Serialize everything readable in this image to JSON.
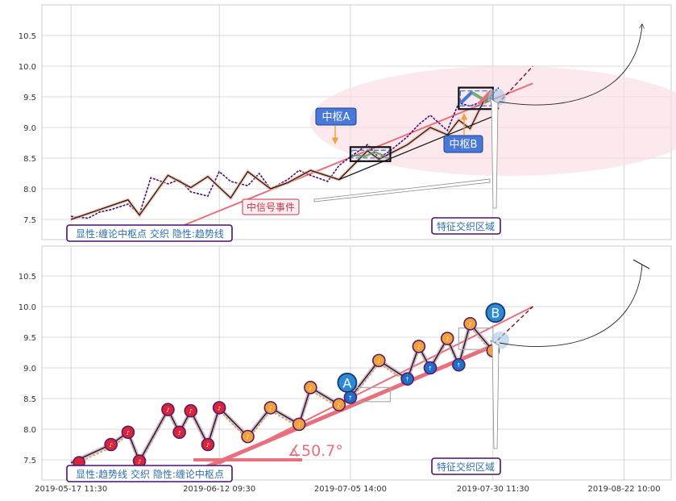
{
  "chart_data": [
    {
      "type": "line",
      "panel": "top",
      "title": "",
      "xlabel": "",
      "ylabel": "",
      "ylim": [
        7.3,
        10.95
      ],
      "yticks": [
        7.5,
        8.0,
        8.5,
        9.0,
        9.5,
        10.0,
        10.5
      ],
      "ytick_labels": [
        "7.5",
        "8.0",
        "8.5",
        "9.0",
        "9.5",
        "10.0",
        "10.5"
      ],
      "grid": true,
      "price_series": {
        "x": [
          "2019-05-17",
          "2019-05-20",
          "2019-05-22",
          "2019-05-24",
          "2019-05-27",
          "2019-05-29",
          "2019-05-31",
          "2019-06-03",
          "2019-06-05",
          "2019-06-07",
          "2019-06-10",
          "2019-06-12",
          "2019-06-14",
          "2019-06-17",
          "2019-06-19",
          "2019-06-21",
          "2019-06-24",
          "2019-06-26",
          "2019-06-28",
          "2019-07-01",
          "2019-07-03",
          "2019-07-05",
          "2019-07-08",
          "2019-07-10",
          "2019-07-12",
          "2019-07-15",
          "2019-07-17",
          "2019-07-19",
          "2019-07-22",
          "2019-07-24",
          "2019-07-26",
          "2019-07-29",
          "2019-07-31"
        ],
        "y": [
          7.55,
          7.52,
          7.62,
          7.66,
          7.75,
          7.58,
          8.18,
          8.08,
          8.15,
          7.95,
          7.88,
          8.28,
          8.12,
          8.05,
          8.25,
          8.0,
          8.15,
          8.3,
          8.22,
          8.12,
          8.38,
          8.52,
          8.72,
          8.5,
          8.62,
          8.85,
          9.05,
          9.2,
          8.95,
          9.4,
          9.35,
          9.45,
          9.65
        ]
      },
      "stroke_series": {
        "x": [
          "2019-05-17",
          "2019-05-27",
          "2019-05-29",
          "2019-06-03",
          "2019-06-07",
          "2019-06-10",
          "2019-06-14",
          "2019-06-17",
          "2019-06-21",
          "2019-06-24",
          "2019-06-28",
          "2019-07-03",
          "2019-07-08",
          "2019-07-10",
          "2019-07-15",
          "2019-07-19",
          "2019-07-22",
          "2019-07-24",
          "2019-07-26",
          "2019-07-29",
          "2019-07-31"
        ],
        "y": [
          7.5,
          7.82,
          7.57,
          8.22,
          8.02,
          8.2,
          7.85,
          8.28,
          8.0,
          8.1,
          8.3,
          8.15,
          8.62,
          8.48,
          8.72,
          9.0,
          8.88,
          9.12,
          8.98,
          9.55,
          9.3
        ]
      },
      "trend_line": {
        "x": [
          "2019-06-03",
          "2019-08-06"
        ],
        "y": [
          7.3,
          9.72
        ]
      },
      "support_line": {
        "x": [
          "2019-07-03",
          "2019-07-30"
        ],
        "y": [
          8.15,
          9.18
        ]
      },
      "extension_line": {
        "x": [
          "2019-07-30",
          "2019-08-06"
        ],
        "y": [
          9.3,
          10.0
        ]
      },
      "zhongshu_boxes": [
        {
          "label": "中枢A",
          "x": [
            "2019-07-05",
            "2019-07-12"
          ],
          "y": [
            8.45,
            8.68
          ]
        },
        {
          "label": "中枢B",
          "x": [
            "2019-07-24",
            "2019-07-30"
          ],
          "y": [
            9.3,
            9.65
          ]
        }
      ],
      "annotations": [
        "中枢A",
        "中枢B",
        "中信号事件",
        "特征交织区域"
      ],
      "legend": "显性:缠论中枢点 交织 隐性:趋势线",
      "legend_position": "bottom-left"
    },
    {
      "type": "line",
      "panel": "bottom",
      "title": "",
      "xlabel": "",
      "ylabel": "",
      "ylim": [
        7.3,
        10.95
      ],
      "yticks": [
        7.5,
        8.0,
        8.5,
        9.0,
        9.5,
        10.0,
        10.5
      ],
      "ytick_labels": [
        "7.5",
        "8.0",
        "8.5",
        "9.0",
        "9.5",
        "10.0",
        "10.5"
      ],
      "x_tick_labels": [
        "2019-05-17 11:30",
        "2019-06-12 09:30",
        "2019-07-05 14:00",
        "2019-07-30 11:30",
        "2019-08-22 10:00"
      ],
      "grid": true,
      "stroke_series": {
        "x": [
          "2019-05-17",
          "2019-05-24",
          "2019-05-27",
          "2019-05-29",
          "2019-06-03",
          "2019-06-05",
          "2019-06-07",
          "2019-06-10",
          "2019-06-12",
          "2019-06-17",
          "2019-06-21",
          "2019-06-26",
          "2019-06-28",
          "2019-07-03",
          "2019-07-05",
          "2019-07-10",
          "2019-07-15",
          "2019-07-17",
          "2019-07-19",
          "2019-07-22",
          "2019-07-24",
          "2019-07-26",
          "2019-07-30"
        ],
        "y": [
          7.45,
          7.75,
          7.95,
          7.48,
          8.32,
          7.95,
          8.3,
          7.75,
          8.35,
          7.88,
          8.35,
          8.08,
          8.68,
          8.4,
          8.52,
          9.12,
          8.82,
          9.35,
          9.0,
          9.48,
          9.05,
          9.72,
          9.28
        ]
      },
      "zhongshu_points": [
        {
          "label": "A",
          "x": "2019-07-05",
          "y": 8.68
        },
        {
          "label": "B",
          "x": "2019-07-31",
          "y": 9.82
        }
      ],
      "angle_annotation": "∡50.7°",
      "annotations": [
        "特征交织区域"
      ],
      "legend": "显性:趋势线 交织 隐性:缠论中枢点",
      "legend_position": "bottom-left"
    }
  ],
  "colors": {
    "grid": "#cccccc",
    "trend": "#e8707c",
    "price": "#4b0f6e",
    "stroke": "#1a1a1a",
    "box_label": "#4a78d8",
    "legend_text": "#2f6fae",
    "legend_border": "#4b0f6e",
    "ellipse": "#f9dde3",
    "marker_red": "#d8253a",
    "marker_orange": "#f2a13a",
    "marker_blue": "#1f6fc8",
    "signal_text": "#c0384c"
  }
}
